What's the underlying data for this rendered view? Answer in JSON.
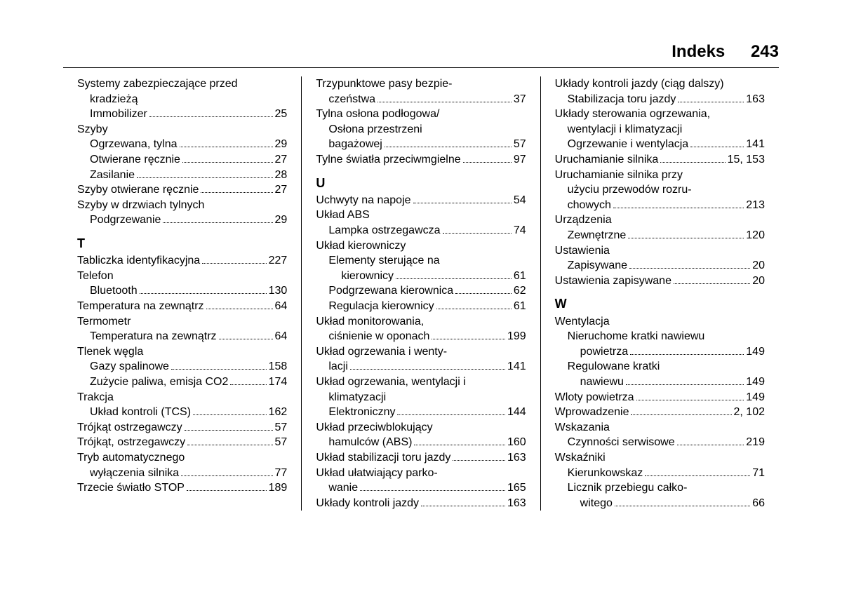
{
  "header": {
    "title": "Indeks",
    "page": "243"
  },
  "col1": [
    {
      "type": "line",
      "text": "Systemy zabezpieczające przed"
    },
    {
      "type": "line",
      "text": "kradzieżą",
      "indent": 1
    },
    {
      "type": "entry",
      "label": "Immobilizer",
      "page": "25",
      "indent": 1
    },
    {
      "type": "line",
      "text": "Szyby"
    },
    {
      "type": "entry",
      "label": "Ogrzewana, tylna",
      "page": "29",
      "indent": 1
    },
    {
      "type": "entry",
      "label": "Otwierane ręcznie",
      "page": "27",
      "indent": 1
    },
    {
      "type": "entry",
      "label": "Zasilanie",
      "page": "28",
      "indent": 1
    },
    {
      "type": "entry",
      "label": "Szyby otwierane ręcznie",
      "page": "27"
    },
    {
      "type": "line",
      "text": "Szyby w drzwiach tylnych"
    },
    {
      "type": "entry",
      "label": "Podgrzewanie",
      "page": "29",
      "indent": 1
    },
    {
      "type": "letter",
      "text": "T"
    },
    {
      "type": "entry",
      "label": "Tabliczka identyfikacyjna",
      "page": "227"
    },
    {
      "type": "line",
      "text": "Telefon"
    },
    {
      "type": "entry",
      "label": "Bluetooth",
      "page": "130",
      "indent": 1
    },
    {
      "type": "entry",
      "label": "Temperatura na zewnątrz",
      "page": "64"
    },
    {
      "type": "line",
      "text": "Termometr"
    },
    {
      "type": "entry",
      "label": "Temperatura na zewnątrz",
      "page": "64",
      "indent": 1
    },
    {
      "type": "line",
      "text": "Tlenek węgla"
    },
    {
      "type": "entry",
      "label": "Gazy spalinowe",
      "page": "158",
      "indent": 1
    },
    {
      "type": "entry",
      "label": "Zużycie paliwa, emisja CO2",
      "page": "174",
      "indent": 1
    },
    {
      "type": "line",
      "text": "Trakcja"
    },
    {
      "type": "entry",
      "label": "Układ kontroli (TCS)",
      "page": "162",
      "indent": 1
    },
    {
      "type": "entry",
      "label": "Trójkąt ostrzegawczy",
      "page": "57"
    },
    {
      "type": "entry",
      "label": "Trójkąt, ostrzegawczy",
      "page": "57"
    },
    {
      "type": "line",
      "text": "Tryb automatycznego"
    },
    {
      "type": "entry",
      "label": "wyłączenia silnika",
      "page": "77",
      "indent": 1
    },
    {
      "type": "entry",
      "label": "Trzecie światło STOP",
      "page": "189"
    }
  ],
  "col2": [
    {
      "type": "line",
      "text": "Trzypunktowe pasy bezpie-"
    },
    {
      "type": "entry",
      "label": "czeństwa",
      "page": "37",
      "indent": 1
    },
    {
      "type": "line",
      "text": "Tylna osłona podłogowa/"
    },
    {
      "type": "line",
      "text": "Osłona przestrzeni",
      "indent": 1
    },
    {
      "type": "entry",
      "label": "bagażowej",
      "page": "57",
      "indent": 1
    },
    {
      "type": "entry",
      "label": "Tylne światła przeciwmgielne",
      "page": "97"
    },
    {
      "type": "letter",
      "text": "U"
    },
    {
      "type": "entry",
      "label": "Uchwyty na napoje",
      "page": "54"
    },
    {
      "type": "line",
      "text": "Układ ABS"
    },
    {
      "type": "entry",
      "label": "Lampka ostrzegawcza",
      "page": "74",
      "indent": 1
    },
    {
      "type": "line",
      "text": "Układ kierowniczy"
    },
    {
      "type": "line",
      "text": "Elementy sterujące na",
      "indent": 1
    },
    {
      "type": "entry",
      "label": "kierownicy",
      "page": "61",
      "indent": 2
    },
    {
      "type": "entry",
      "label": "Podgrzewana kierownica",
      "page": "62",
      "indent": 1
    },
    {
      "type": "entry",
      "label": "Regulacja kierownicy",
      "page": "61",
      "indent": 1
    },
    {
      "type": "line",
      "text": "Układ monitorowania,"
    },
    {
      "type": "entry",
      "label": "ciśnienie w oponach",
      "page": "199",
      "indent": 1
    },
    {
      "type": "line",
      "text": "Układ ogrzewania i wenty-"
    },
    {
      "type": "entry",
      "label": "lacji",
      "page": "141",
      "indent": 1
    },
    {
      "type": "line",
      "text": "Układ ogrzewania, wentylacji i"
    },
    {
      "type": "line",
      "text": "klimatyzacji",
      "indent": 1
    },
    {
      "type": "entry",
      "label": "Elektroniczny",
      "page": "144",
      "indent": 1
    },
    {
      "type": "line",
      "text": "Układ przeciwblokujący"
    },
    {
      "type": "entry",
      "label": "hamulców (ABS)",
      "page": "160",
      "indent": 1
    },
    {
      "type": "entry",
      "label": "Układ stabilizacji toru jazdy",
      "page": "163"
    },
    {
      "type": "line",
      "text": "Układ ułatwiający parko-"
    },
    {
      "type": "entry",
      "label": "wanie",
      "page": "165",
      "indent": 1
    },
    {
      "type": "entry",
      "label": "Układy kontroli jazdy",
      "page": "163"
    }
  ],
  "col3": [
    {
      "type": "line",
      "text": "Układy kontroli jazdy (ciąg dalszy)"
    },
    {
      "type": "entry",
      "label": "Stabilizacja toru jazdy",
      "page": "163",
      "indent": 1
    },
    {
      "type": "line",
      "text": "Układy sterowania ogrzewania,"
    },
    {
      "type": "line",
      "text": "wentylacji i klimatyzacji",
      "indent": 1
    },
    {
      "type": "entry",
      "label": "Ogrzewanie i wentylacja",
      "page": "141",
      "indent": 1
    },
    {
      "type": "entry",
      "label": "Uruchamianie silnika",
      "page": "15, 153"
    },
    {
      "type": "line",
      "text": "Uruchamianie silnika przy"
    },
    {
      "type": "line",
      "text": "użyciu przewodów rozru-",
      "indent": 1
    },
    {
      "type": "entry",
      "label": "chowych",
      "page": "213",
      "indent": 1
    },
    {
      "type": "line",
      "text": "Urządzenia"
    },
    {
      "type": "entry",
      "label": "Zewnętrzne",
      "page": "120",
      "indent": 1
    },
    {
      "type": "line",
      "text": "Ustawienia"
    },
    {
      "type": "entry",
      "label": "Zapisywane",
      "page": "20",
      "indent": 1
    },
    {
      "type": "entry",
      "label": "Ustawienia zapisywane",
      "page": "20"
    },
    {
      "type": "letter",
      "text": "W"
    },
    {
      "type": "line",
      "text": "Wentylacja"
    },
    {
      "type": "line",
      "text": "Nieruchome kratki nawiewu",
      "indent": 1
    },
    {
      "type": "entry",
      "label": "powietrza",
      "page": "149",
      "indent": 2
    },
    {
      "type": "line",
      "text": "Regulowane kratki",
      "indent": 1
    },
    {
      "type": "entry",
      "label": "nawiewu",
      "page": "149",
      "indent": 2
    },
    {
      "type": "entry",
      "label": "Wloty powietrza",
      "page": "149"
    },
    {
      "type": "entry",
      "label": "Wprowadzenie",
      "page": "2, 102"
    },
    {
      "type": "line",
      "text": "Wskazania"
    },
    {
      "type": "entry",
      "label": "Czynności serwisowe",
      "page": "219",
      "indent": 1
    },
    {
      "type": "line",
      "text": "Wskaźniki"
    },
    {
      "type": "entry",
      "label": "Kierunkowskaz",
      "page": "71",
      "indent": 1
    },
    {
      "type": "line",
      "text": "Licznik przebiegu całko-",
      "indent": 1
    },
    {
      "type": "entry",
      "label": "witego",
      "page": "66",
      "indent": 2
    }
  ]
}
